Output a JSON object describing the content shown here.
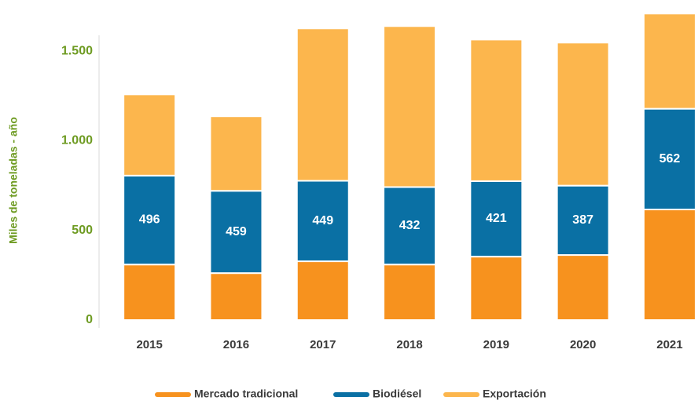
{
  "chart_data": {
    "type": "stacked-bar",
    "y_label": "Miles de toneladas - año",
    "categories": [
      "2015",
      "2016",
      "2017",
      "2018",
      "2019",
      "2020",
      "2021"
    ],
    "series": [
      {
        "name": "Mercado tradicional",
        "color": "#f7921e",
        "values": [
          310,
          262,
          328,
          310,
          354,
          363,
          617
        ]
      },
      {
        "name": "Biodiésel",
        "color": "#0a70a4",
        "values": [
          496,
          459,
          449,
          432,
          421,
          387,
          562
        ]
      },
      {
        "name": "Exportación",
        "color": "#fcb64d",
        "values": [
          453,
          416,
          850,
          898,
          790,
          798,
          531
        ]
      }
    ],
    "labeled_series": 1,
    "ylim": [
      0,
      1720
    ],
    "yticks": [
      0,
      500,
      {
        "value": 1000,
        "label": "1.000"
      },
      {
        "value": 1500,
        "label": "1.500"
      }
    ],
    "legend": "bottom"
  }
}
